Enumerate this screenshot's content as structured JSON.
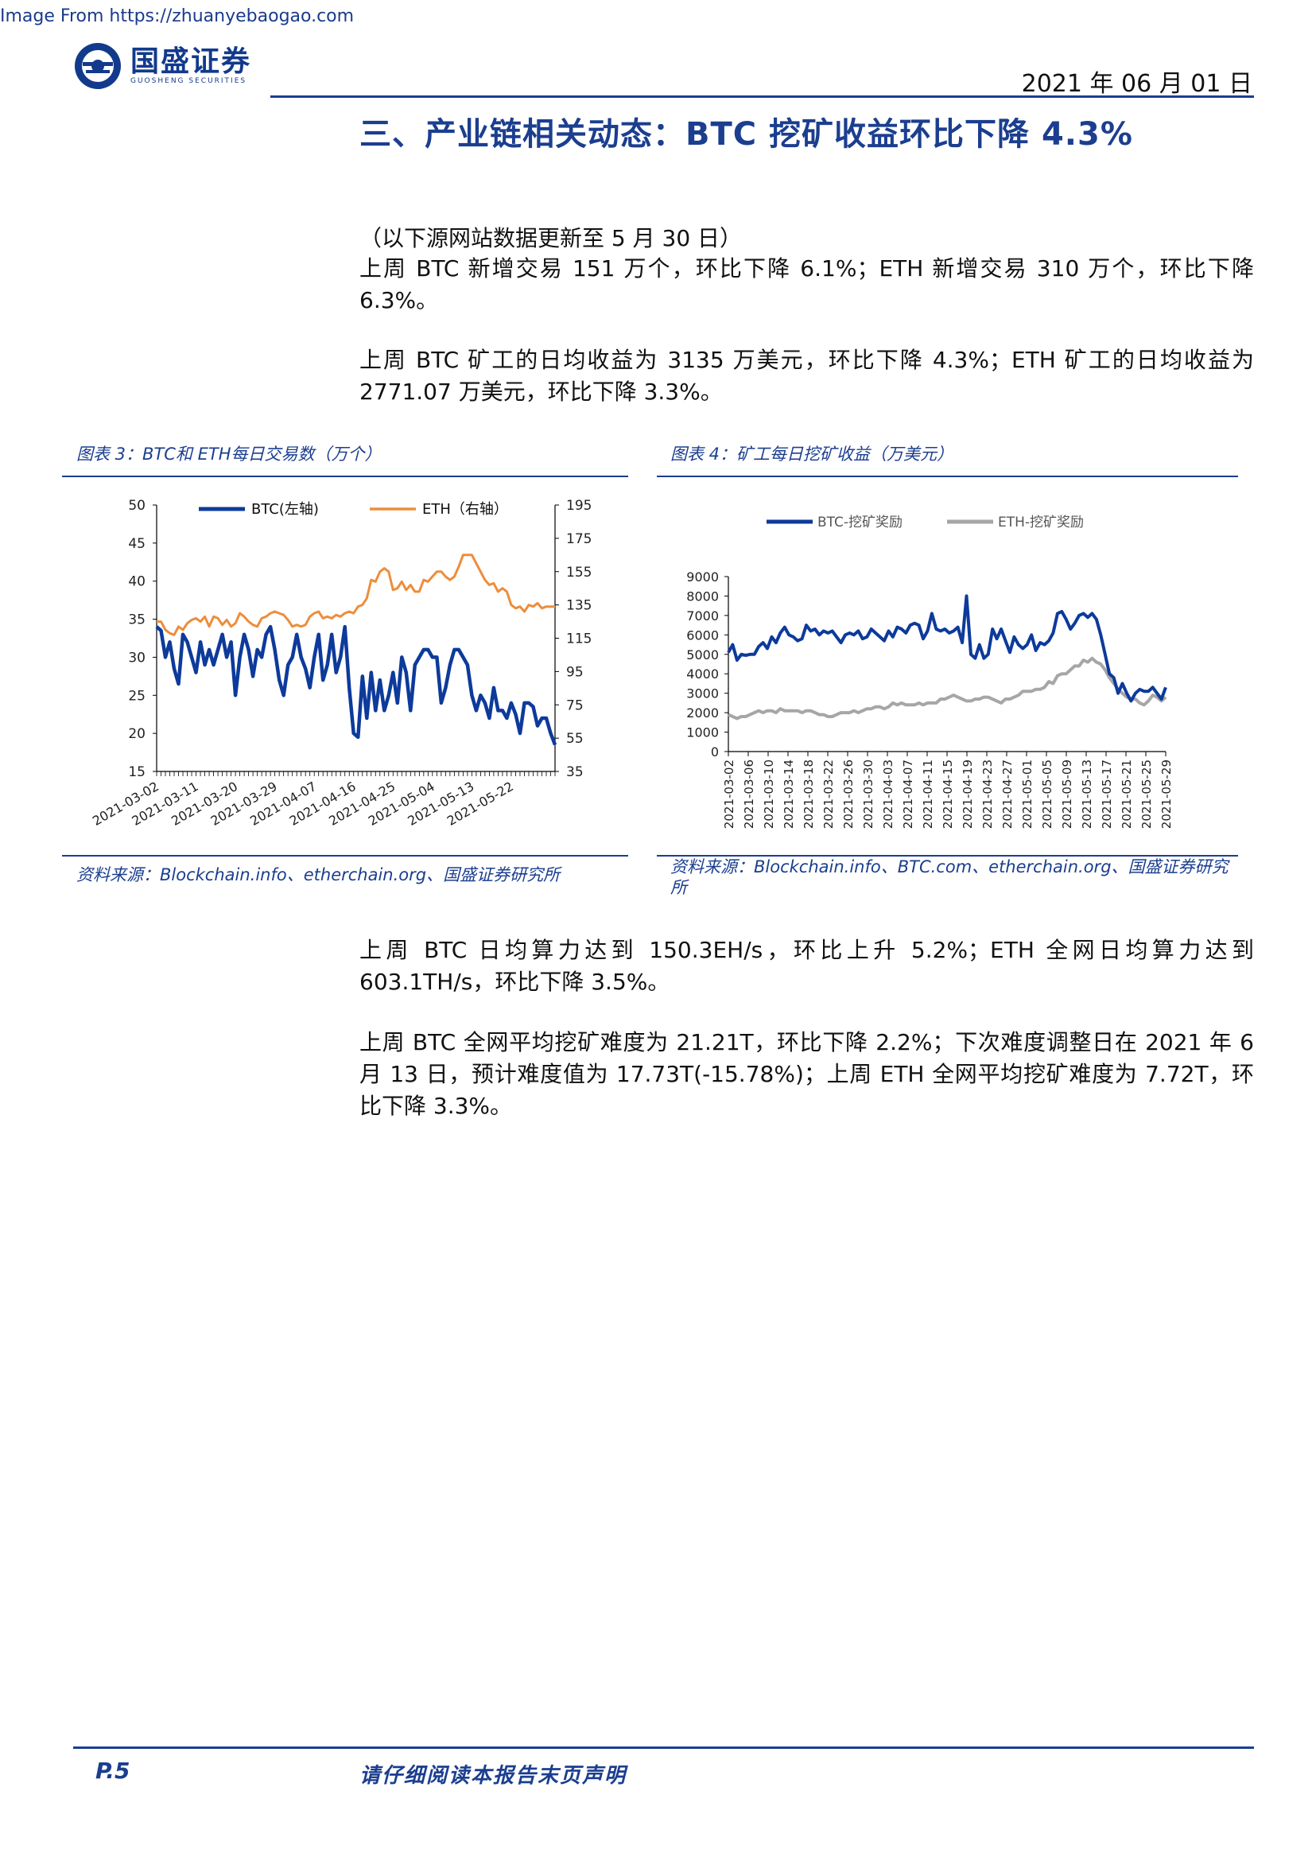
{
  "watermark": "Image From https://zhuanyebaogao.com",
  "header": {
    "logo_cn": "国盛证券",
    "logo_en": "GUOSHENG SECURITIES",
    "date": "2021 年 06 月 01 日"
  },
  "section_title": "三、产业链相关动态：BTC 挖矿收益环比下降 4.3%",
  "paragraphs": {
    "p1": "（以下源网站数据更新至 5 月 30 日）",
    "p2": "上周 BTC 新增交易 151 万个，环比下降 6.1%；ETH 新增交易 310 万个，环比下降 6.3%。",
    "p3": "上周 BTC 矿工的日均收益为 3135 万美元，环比下降 4.3%；ETH 矿工的日均收益为 2771.07 万美元，环比下降 3.3%。",
    "p4": "上周 BTC 日均算力达到 150.3EH/s，环比上升 5.2%；ETH 全网日均算力达到 603.1TH/s，环比下降 3.5%。",
    "p5": "上周 BTC 全网平均挖矿难度为 21.21T，环比下降 2.2%；下次难度调整日在 2021 年 6 月 13 日，预计难度值为 17.73T(-15.78%)；上周 ETH 全网平均挖矿难度为 7.72T，环比下降 3.3%。"
  },
  "figure3": {
    "caption": "图表 3：BTC和 ETH每日交易数（万个）",
    "source": "资料来源：Blockchain.info、etherchain.org、国盛证券研究所"
  },
  "figure4": {
    "caption": "图表 4：矿工每日挖矿收益（万美元）",
    "source": "资料来源：Blockchain.info、BTC.com、etherchain.org、国盛证券研究所"
  },
  "footer": {
    "page": "P.5",
    "note": "请仔细阅读本报告末页声明"
  },
  "colors": {
    "brand": "#1b3e8f",
    "btc": "#0d3a9b",
    "eth_tx": "#ed8d3b",
    "eth_rev": "#a6a6a6"
  },
  "chart_data": [
    {
      "type": "line",
      "title": "图表 3：BTC和 ETH每日交易数（万个）",
      "x_tick_labels": [
        "2021-03-02",
        "2021-03-11",
        "2021-03-20",
        "2021-03-29",
        "2021-04-07",
        "2021-04-16",
        "2021-04-25",
        "2021-05-04",
        "2021-05-13",
        "2021-05-22"
      ],
      "y_left": {
        "lim": [
          15,
          50
        ],
        "ticks": [
          "15",
          "20",
          "25",
          "30",
          "35",
          "40",
          "45",
          "50"
        ]
      },
      "y_right": {
        "lim": [
          35,
          195
        ],
        "ticks": [
          "35",
          "55",
          "75",
          "95",
          "115",
          "135",
          "155",
          "175",
          "195"
        ]
      },
      "grid": false,
      "legend": "top",
      "series": [
        {
          "name": "BTC(左轴)",
          "axis": "left",
          "color": "#0d3a9b",
          "values": [
            34,
            33.5,
            30,
            32,
            28.5,
            26.5,
            33,
            32,
            30,
            28,
            32,
            29,
            31,
            29,
            31,
            33,
            30,
            32,
            25,
            30,
            33,
            31,
            27.5,
            31,
            30,
            33,
            34,
            31,
            27,
            25,
            29,
            30,
            33,
            30,
            28.5,
            26,
            30,
            33,
            27,
            29,
            33,
            28,
            30,
            34,
            26,
            20,
            19.5,
            27.5,
            22,
            28,
            23,
            27,
            23,
            25,
            28,
            24,
            30,
            28,
            23,
            29,
            30,
            31,
            31,
            30,
            30,
            24,
            26,
            29,
            31,
            31,
            30,
            29,
            25,
            23,
            25,
            24,
            22,
            26,
            23,
            23,
            22,
            24,
            22.5,
            20,
            24,
            24,
            23.5,
            21,
            22,
            22,
            20,
            18.5
          ]
        },
        {
          "name": "ETH（右轴）",
          "axis": "right",
          "color": "#ed8d3b",
          "values": [
            125,
            125,
            120,
            118,
            117,
            122,
            120,
            124,
            126,
            127,
            125,
            128,
            122,
            128,
            127,
            123,
            126,
            122,
            124,
            130,
            128,
            125,
            123,
            122,
            127,
            128,
            130,
            131,
            130,
            129,
            126,
            122,
            123,
            122,
            123,
            128,
            130,
            131,
            127,
            128,
            127,
            129,
            128,
            130,
            131,
            130,
            134,
            135,
            139,
            150,
            149,
            155,
            157,
            155,
            144,
            145,
            149,
            144,
            147,
            143,
            143,
            150,
            149,
            152,
            155,
            155,
            152,
            150,
            152,
            158,
            165,
            165,
            165,
            160,
            155,
            150,
            147,
            148,
            143,
            145,
            143,
            135,
            133,
            134,
            131,
            135,
            134,
            136,
            133,
            134,
            134,
            134
          ]
        }
      ]
    },
    {
      "type": "line",
      "title": "图表 4：矿工每日挖矿收益（万美元）",
      "x_tick_labels": [
        "2021-03-02",
        "2021-03-06",
        "2021-03-10",
        "2021-03-14",
        "2021-03-18",
        "2021-03-22",
        "2021-03-26",
        "2021-03-30",
        "2021-04-03",
        "2021-04-07",
        "2021-04-11",
        "2021-04-15",
        "2021-04-19",
        "2021-04-23",
        "2021-04-27",
        "2021-05-01",
        "2021-05-05",
        "2021-05-09",
        "2021-05-13",
        "2021-05-17",
        "2021-05-21",
        "2021-05-25",
        "2021-05-29"
      ],
      "ylim": [
        0,
        9000
      ],
      "y_ticks": [
        "0",
        "1000",
        "2000",
        "3000",
        "4000",
        "5000",
        "6000",
        "7000",
        "8000",
        "9000"
      ],
      "grid": false,
      "legend": "top",
      "series": [
        {
          "name": "BTC-挖矿奖励",
          "color": "#0d3a9b",
          "values": [
            5100,
            5500,
            4700,
            5000,
            4950,
            5000,
            5000,
            5400,
            5600,
            5300,
            5900,
            5600,
            6100,
            6400,
            6000,
            5900,
            5700,
            5800,
            6500,
            6200,
            6300,
            6000,
            6200,
            6100,
            6200,
            5900,
            5600,
            6000,
            6100,
            6000,
            6200,
            5800,
            5900,
            6300,
            6100,
            5900,
            5700,
            6200,
            5900,
            6400,
            6300,
            6100,
            6500,
            6600,
            6500,
            5800,
            6200,
            7100,
            6300,
            6200,
            6300,
            6100,
            6200,
            6400,
            5600,
            8000,
            5000,
            4800,
            5500,
            4800,
            5000,
            6300,
            5800,
            6300,
            5700,
            5100,
            5900,
            5500,
            5300,
            5500,
            6000,
            5200,
            5600,
            5500,
            5700,
            6100,
            7100,
            7200,
            6800,
            6300,
            6600,
            7000,
            7100,
            6900,
            7100,
            6800,
            6000,
            5000,
            4000,
            3800,
            3000,
            3500,
            3000,
            2600,
            3000,
            3200,
            3100,
            3100,
            3300,
            3000,
            2700,
            3300
          ]
        },
        {
          "name": "ETH-挖矿奖励",
          "color": "#a6a6a6",
          "values": [
            1900,
            1800,
            1700,
            1800,
            1800,
            1900,
            2000,
            2100,
            2000,
            2100,
            2100,
            2000,
            2200,
            2100,
            2100,
            2100,
            2100,
            2000,
            2100,
            2100,
            2000,
            1900,
            1900,
            1800,
            1800,
            1900,
            2000,
            2000,
            2000,
            2100,
            2000,
            2100,
            2200,
            2200,
            2300,
            2300,
            2200,
            2300,
            2500,
            2400,
            2500,
            2400,
            2400,
            2400,
            2500,
            2400,
            2500,
            2500,
            2500,
            2700,
            2700,
            2800,
            2900,
            2800,
            2700,
            2600,
            2600,
            2700,
            2700,
            2800,
            2800,
            2700,
            2600,
            2500,
            2700,
            2700,
            2800,
            2900,
            3100,
            3100,
            3100,
            3200,
            3200,
            3300,
            3600,
            3500,
            3900,
            4000,
            4000,
            4200,
            4400,
            4400,
            4700,
            4600,
            4800,
            4600,
            4500,
            4200,
            3800,
            3500,
            3200,
            3000,
            2800,
            2700,
            2700,
            2500,
            2400,
            2600,
            2900,
            2800,
            2600,
            2800
          ]
        }
      ]
    }
  ]
}
